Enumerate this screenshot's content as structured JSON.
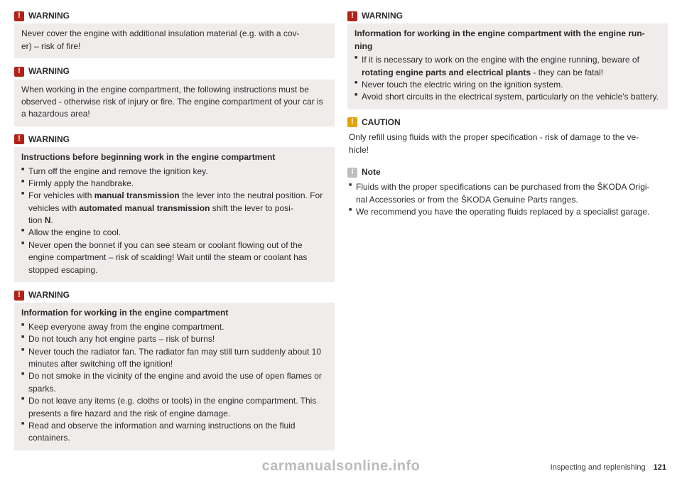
{
  "left": {
    "w1": {
      "label": "WARNING",
      "body": "Never cover the engine with additional insulation material (e.g. with a cov-\ner) – risk of fire!"
    },
    "w2": {
      "label": "WARNING",
      "body": "When working in the engine compartment, the following instructions must be observed - otherwise risk of injury or fire. The engine compartment of your car is a hazardous area!"
    },
    "w3": {
      "label": "WARNING",
      "subtitle": "Instructions before beginning work in the engine compartment",
      "items": [
        "Turn off the engine and remove the ignition key.",
        "Firmly apply the handbrake.",
        "For vehicles with |manual transmission| the lever into the neutral position. For vehicles with |automated manual transmission| shift the lever to posi-\ntion |N|.",
        "Allow the engine to cool.",
        "Never open the bonnet if you can see steam or coolant flowing out of the engine compartment – risk of scalding! Wait until the steam or coolant has stopped escaping."
      ]
    },
    "w4": {
      "label": "WARNING",
      "subtitle": "Information for working in the engine compartment",
      "items": [
        "Keep everyone away from the engine compartment.",
        "Do not touch any hot engine parts – risk of burns!",
        "Never touch the radiator fan. The radiator fan may still turn suddenly about 10 minutes after switching off the ignition!",
        "Do not smoke in the vicinity of the engine and avoid the use of open flames or sparks.",
        "Do not leave any items (e.g. cloths or tools) in the engine compartment. This presents a fire hazard and the risk of engine damage.",
        "Read and observe the information and warning instructions on the fluid containers."
      ]
    }
  },
  "right": {
    "w5": {
      "label": "WARNING",
      "subtitle": "Information for working in the engine compartment with the engine run-\nning",
      "items": [
        "If it is necessary to work on the engine with the engine running, beware of |rotating engine parts and electrical plants| - they can be fatal!",
        "Never touch the electric wiring on the ignition system.",
        "Avoid short circuits in the electrical system, particularly on the vehicle's battery."
      ]
    },
    "caution": {
      "label": "CAUTION",
      "body": "Only refill using fluids with the proper specification - risk of damage to the ve-\nhicle!"
    },
    "note": {
      "label": "Note",
      "items": [
        "Fluids with the proper specifications can be purchased from the ŠKODA Origi-\nnal Accessories or from the ŠKODA Genuine Parts ranges.",
        "We recommend you have the operating fluids replaced by a specialist garage."
      ]
    }
  },
  "footer": {
    "section": "Inspecting and replenishing",
    "page": "121"
  },
  "watermark": "carmanualsonline.info"
}
